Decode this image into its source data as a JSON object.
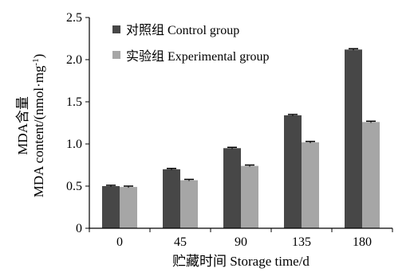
{
  "chart_data": {
    "type": "bar",
    "categories": [
      "0",
      "45",
      "90",
      "135",
      "180"
    ],
    "series": [
      {
        "name": "对照组 Control group",
        "color": "#474747",
        "values": [
          0.5,
          0.7,
          0.95,
          1.34,
          2.12
        ],
        "errors": [
          0.01,
          0.01,
          0.01,
          0.01,
          0.01
        ]
      },
      {
        "name": "实验组 Experimental group",
        "color": "#a6a6a6",
        "values": [
          0.49,
          0.57,
          0.74,
          1.02,
          1.26
        ],
        "errors": [
          0.01,
          0.01,
          0.01,
          0.01,
          0.01
        ]
      }
    ],
    "xlabel": "贮藏时间 Storage time/d",
    "ylabel_line1": "MDA含量",
    "ylabel_line2": "MDA content/(nmol·mg",
    "ylabel_sup": "-1",
    "ylabel_close": ")",
    "ylim": [
      0,
      2.5
    ],
    "yticks": [
      "0",
      "0.5",
      "1.0",
      "1.5",
      "2.0",
      "2.5"
    ],
    "grid": false,
    "legend_position": "top-left"
  }
}
